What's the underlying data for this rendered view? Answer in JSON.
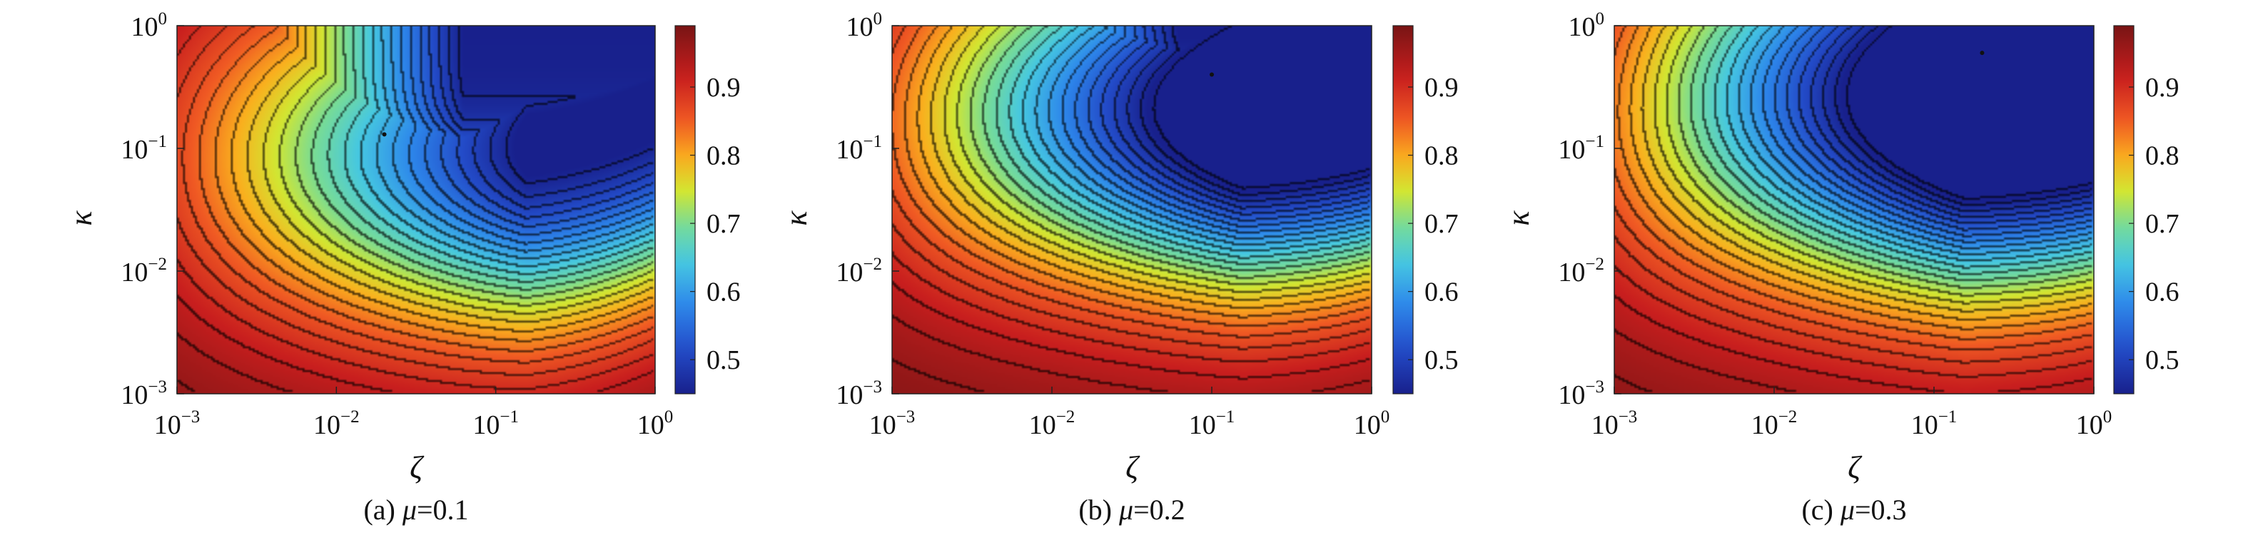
{
  "chart_data": [
    {
      "type": "heatmap",
      "caption_prefix": "(a) ",
      "caption_symbol": "μ",
      "caption_value": "=0.1",
      "mu": 0.1,
      "xlabel": "ζ",
      "ylabel": "κ",
      "xscale": "log",
      "yscale": "log",
      "xlim": [
        0.001,
        1
      ],
      "ylim": [
        0.001,
        1
      ],
      "x_ticks": [
        {
          "base": "10",
          "exp": "−3"
        },
        {
          "base": "10",
          "exp": "−2"
        },
        {
          "base": "10",
          "exp": "−1"
        },
        {
          "base": "10",
          "exp": "0"
        }
      ],
      "y_ticks": [
        {
          "base": "10",
          "exp": "−3"
        },
        {
          "base": "10",
          "exp": "−2"
        },
        {
          "base": "10",
          "exp": "−1"
        },
        {
          "base": "10",
          "exp": "0"
        }
      ],
      "colorbar": {
        "range": [
          0.45,
          0.99
        ],
        "ticks": [
          "0.5",
          "0.6",
          "0.7",
          "0.8",
          "0.9"
        ]
      },
      "minimum": {
        "zeta": 0.02,
        "kappa": 0.13,
        "value": 0.53
      }
    },
    {
      "type": "heatmap",
      "caption_prefix": "(b) ",
      "caption_symbol": "μ",
      "caption_value": "=0.2",
      "mu": 0.2,
      "xlabel": "ζ",
      "ylabel": "κ",
      "xscale": "log",
      "yscale": "log",
      "xlim": [
        0.001,
        1
      ],
      "ylim": [
        0.001,
        1
      ],
      "x_ticks": [
        {
          "base": "10",
          "exp": "−3"
        },
        {
          "base": "10",
          "exp": "−2"
        },
        {
          "base": "10",
          "exp": "−1"
        },
        {
          "base": "10",
          "exp": "0"
        }
      ],
      "y_ticks": [
        {
          "base": "10",
          "exp": "−3"
        },
        {
          "base": "10",
          "exp": "−2"
        },
        {
          "base": "10",
          "exp": "−1"
        },
        {
          "base": "10",
          "exp": "0"
        }
      ],
      "colorbar": {
        "range": [
          0.45,
          0.99
        ],
        "ticks": [
          "0.5",
          "0.6",
          "0.7",
          "0.8",
          "0.9"
        ]
      },
      "minimum": {
        "zeta": 0.1,
        "kappa": 0.4,
        "value": 0.46
      }
    },
    {
      "type": "heatmap",
      "caption_prefix": "(c) ",
      "caption_symbol": "μ",
      "caption_value": "=0.3",
      "mu": 0.3,
      "xlabel": "ζ",
      "ylabel": "κ",
      "xscale": "log",
      "yscale": "log",
      "xlim": [
        0.001,
        1
      ],
      "ylim": [
        0.001,
        1
      ],
      "x_ticks": [
        {
          "base": "10",
          "exp": "−3"
        },
        {
          "base": "10",
          "exp": "−2"
        },
        {
          "base": "10",
          "exp": "−1"
        },
        {
          "base": "10",
          "exp": "0"
        }
      ],
      "y_ticks": [
        {
          "base": "10",
          "exp": "−3"
        },
        {
          "base": "10",
          "exp": "−2"
        },
        {
          "base": "10",
          "exp": "−1"
        },
        {
          "base": "10",
          "exp": "0"
        }
      ],
      "colorbar": {
        "range": [
          0.45,
          0.99
        ],
        "ticks": [
          "0.5",
          "0.6",
          "0.7",
          "0.8",
          "0.9"
        ]
      },
      "minimum": {
        "zeta": 0.2,
        "kappa": 0.6,
        "value": 0.46
      }
    }
  ]
}
